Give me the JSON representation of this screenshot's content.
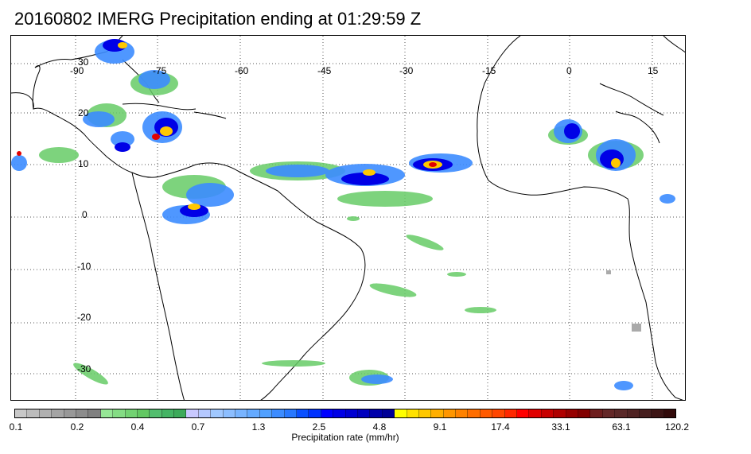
{
  "title": "20160802 IMERG Precipitation ending at 01:29:59 Z",
  "map": {
    "lon_ticks": [
      "-90",
      "-75",
      "-60",
      "-45",
      "-30",
      "-15",
      "0",
      "15"
    ],
    "lat_ticks": [
      "30",
      "20",
      "10",
      "0",
      "-10",
      "-20",
      "-30"
    ],
    "grid": "dotted",
    "land_outline": "black"
  },
  "colorbar": {
    "label": "Precipitation rate (mm/hr)",
    "ticks": [
      "0.1",
      "0.2",
      "0.4",
      "0.7",
      "1.3",
      "2.5",
      "4.8",
      "9.1",
      "17.4",
      "33.1",
      "63.1",
      "120.2"
    ],
    "colors": [
      "#c8c8c8",
      "#bcbcbc",
      "#b0b0b0",
      "#a4a4a4",
      "#989898",
      "#8c8c8c",
      "#808080",
      "#96e696",
      "#84dc84",
      "#72d272",
      "#62c862",
      "#52be6e",
      "#44b464",
      "#3caa5a",
      "#c8c8ff",
      "#b4c8ff",
      "#a0c8ff",
      "#8cbeff",
      "#78b4ff",
      "#64aaff",
      "#50a0ff",
      "#3c8cff",
      "#2878ff",
      "#0a50ff",
      "#0032ff",
      "#0000ff",
      "#0000e6",
      "#0000d2",
      "#0000be",
      "#0000aa",
      "#000096",
      "#ffff00",
      "#ffe100",
      "#ffc800",
      "#ffaf00",
      "#ff9600",
      "#ff8200",
      "#ff6e00",
      "#ff5a00",
      "#ff4600",
      "#ff2800",
      "#ff0000",
      "#e10000",
      "#c80000",
      "#af0000",
      "#960000",
      "#820000",
      "#6e1e1e",
      "#642828",
      "#5a2828",
      "#502323",
      "#461e1e",
      "#3c1414",
      "#320a0a"
    ]
  }
}
